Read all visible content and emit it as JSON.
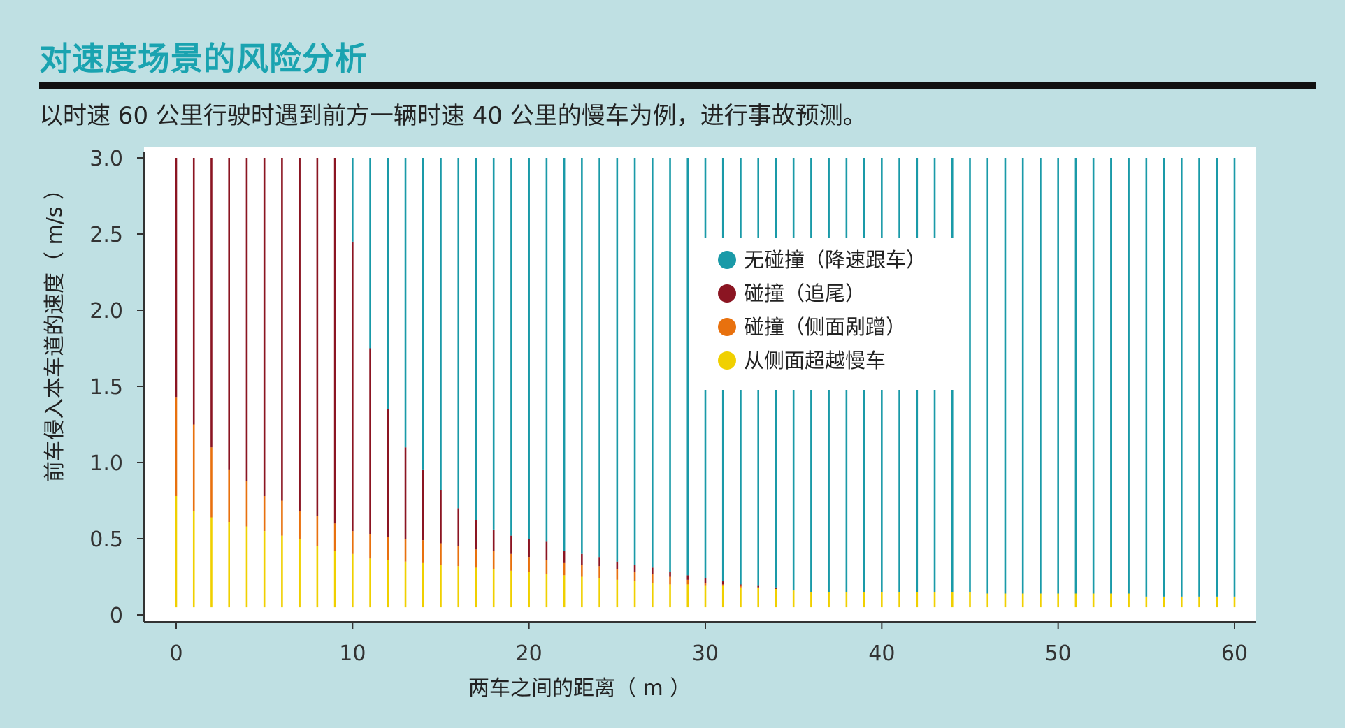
{
  "header": {
    "title": "对速度场景的风险分析",
    "subtitle": "以时速 60 公里行驶时遇到前方一辆时速 40 公里的慢车为例，进行事故预测。"
  },
  "chart_data": {
    "type": "bar",
    "orientation": "vertical-stacked",
    "title": "",
    "xlabel": "两车之间的距离（ m ）",
    "ylabel": "前车侵入本车道的速度（ m/s ）",
    "xlim": [
      0,
      60
    ],
    "ylim": [
      0,
      3.0
    ],
    "x_ticks": [
      "0",
      "10",
      "20",
      "30",
      "40",
      "50",
      "60"
    ],
    "y_ticks": [
      "0",
      "0.5",
      "1.0",
      "1.5",
      "2.0",
      "2.5",
      "3.0"
    ],
    "grid": false,
    "legend_position": "top-right",
    "series": [
      {
        "name": "无碰撞（降速跟车）",
        "color": "#1a9aa8"
      },
      {
        "name": "碰撞（追尾）",
        "color": "#8b1522"
      },
      {
        "name": "碰撞（侧面剐蹭）",
        "color": "#e8710e"
      },
      {
        "name": "从侧面超越慢车",
        "color": "#f0d000"
      }
    ],
    "x": [
      0,
      1,
      2,
      3,
      4,
      5,
      6,
      7,
      8,
      9,
      10,
      11,
      12,
      13,
      14,
      15,
      16,
      17,
      18,
      19,
      20,
      21,
      22,
      23,
      24,
      25,
      26,
      27,
      28,
      29,
      30,
      31,
      32,
      33,
      34,
      35,
      36,
      37,
      38,
      39,
      40,
      41,
      42,
      43,
      44,
      45,
      46,
      47,
      48,
      49,
      50,
      51,
      52,
      53,
      54,
      55,
      56,
      57,
      58,
      59,
      60
    ],
    "overtake_max": [
      0.78,
      0.68,
      0.64,
      0.61,
      0.58,
      0.55,
      0.52,
      0.5,
      0.45,
      0.42,
      0.4,
      0.37,
      0.36,
      0.35,
      0.34,
      0.33,
      0.32,
      0.31,
      0.3,
      0.29,
      0.28,
      0.27,
      0.26,
      0.25,
      0.24,
      0.23,
      0.22,
      0.21,
      0.2,
      0.2,
      0.19,
      0.19,
      0.18,
      0.18,
      0.17,
      0.16,
      0.15,
      0.15,
      0.15,
      0.15,
      0.15,
      0.15,
      0.15,
      0.15,
      0.15,
      0.15,
      0.14,
      0.14,
      0.14,
      0.14,
      0.14,
      0.14,
      0.14,
      0.14,
      0.14,
      0.12,
      0.12,
      0.12,
      0.12,
      0.12,
      0.12
    ],
    "sideswipe_max": [
      1.43,
      1.25,
      1.1,
      0.95,
      0.88,
      0.78,
      0.75,
      0.68,
      0.65,
      0.6,
      0.55,
      0.53,
      0.51,
      0.5,
      0.49,
      0.47,
      0.45,
      0.43,
      0.42,
      0.4,
      0.38,
      0.36,
      0.34,
      0.33,
      0.32,
      0.3,
      0.28,
      0.27,
      0.25,
      0.23,
      0.21,
      0.2,
      0.19,
      0.18,
      0.17,
      0.16,
      0.15,
      0.15,
      0.15,
      0.15,
      0.15,
      0.15,
      0.15,
      0.15,
      0.15,
      0.15,
      0.14,
      0.14,
      0.14,
      0.14,
      0.14,
      0.14,
      0.14,
      0.14,
      0.14,
      0.12,
      0.12,
      0.12,
      0.12,
      0.12,
      0.12
    ],
    "rearend_max": [
      3.0,
      3.0,
      3.0,
      3.0,
      3.0,
      3.0,
      3.0,
      3.0,
      3.0,
      3.0,
      2.45,
      1.75,
      1.35,
      1.1,
      0.95,
      0.82,
      0.7,
      0.62,
      0.56,
      0.52,
      0.5,
      0.48,
      0.42,
      0.4,
      0.38,
      0.35,
      0.33,
      0.31,
      0.28,
      0.26,
      0.24,
      0.22,
      0.2,
      0.19,
      0.18,
      0.16,
      0.15,
      0.15,
      0.15,
      0.15,
      0.15,
      0.15,
      0.15,
      0.15,
      0.15,
      0.15,
      0.14,
      0.14,
      0.14,
      0.14,
      0.14,
      0.14,
      0.14,
      0.14,
      0.14,
      0.12,
      0.12,
      0.12,
      0.12,
      0.12,
      0.12
    ],
    "nocollision_max": 3.0,
    "bar_min": 0.05
  }
}
